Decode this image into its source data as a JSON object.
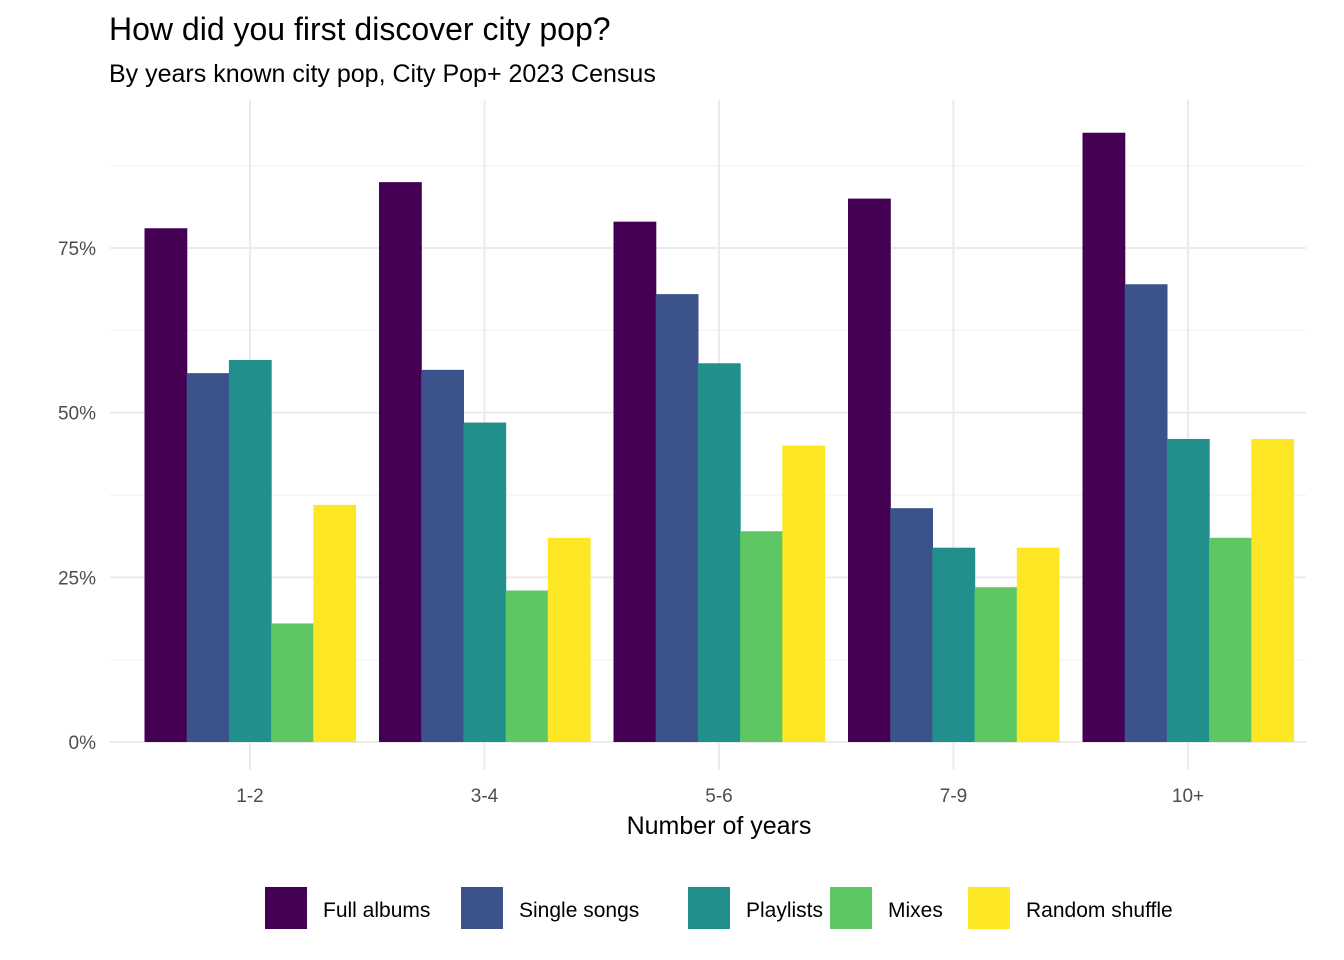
{
  "chart_data": {
    "type": "bar",
    "title": "How did you first discover city pop?",
    "subtitle": "By years known city pop, City Pop+ 2023 Census",
    "xlabel": "Number of years",
    "ylabel": "",
    "categories": [
      "1-2",
      "3-4",
      "5-6",
      "7-9",
      "10+"
    ],
    "ylim": [
      0,
      1.0
    ],
    "y_ticks": [
      0,
      0.25,
      0.5,
      0.75
    ],
    "y_tick_labels": [
      "0%",
      "25%",
      "50%",
      "75%"
    ],
    "grid": true,
    "legend_position": "bottom",
    "series": [
      {
        "name": "Full albums",
        "color": "#440154",
        "values": [
          0.78,
          0.85,
          0.79,
          0.825,
          0.925
        ]
      },
      {
        "name": "Single songs",
        "color": "#3B528B",
        "values": [
          0.56,
          0.565,
          0.68,
          0.355,
          0.695
        ]
      },
      {
        "name": "Playlists",
        "color": "#21908C",
        "values": [
          0.58,
          0.485,
          0.575,
          0.295,
          0.46
        ]
      },
      {
        "name": "Mixes",
        "color": "#5DC863",
        "values": [
          0.18,
          0.23,
          0.32,
          0.235,
          0.31
        ]
      },
      {
        "name": "Random shuffle",
        "color": "#FDE725",
        "values": [
          0.36,
          0.31,
          0.45,
          0.295,
          0.46
        ]
      }
    ]
  }
}
